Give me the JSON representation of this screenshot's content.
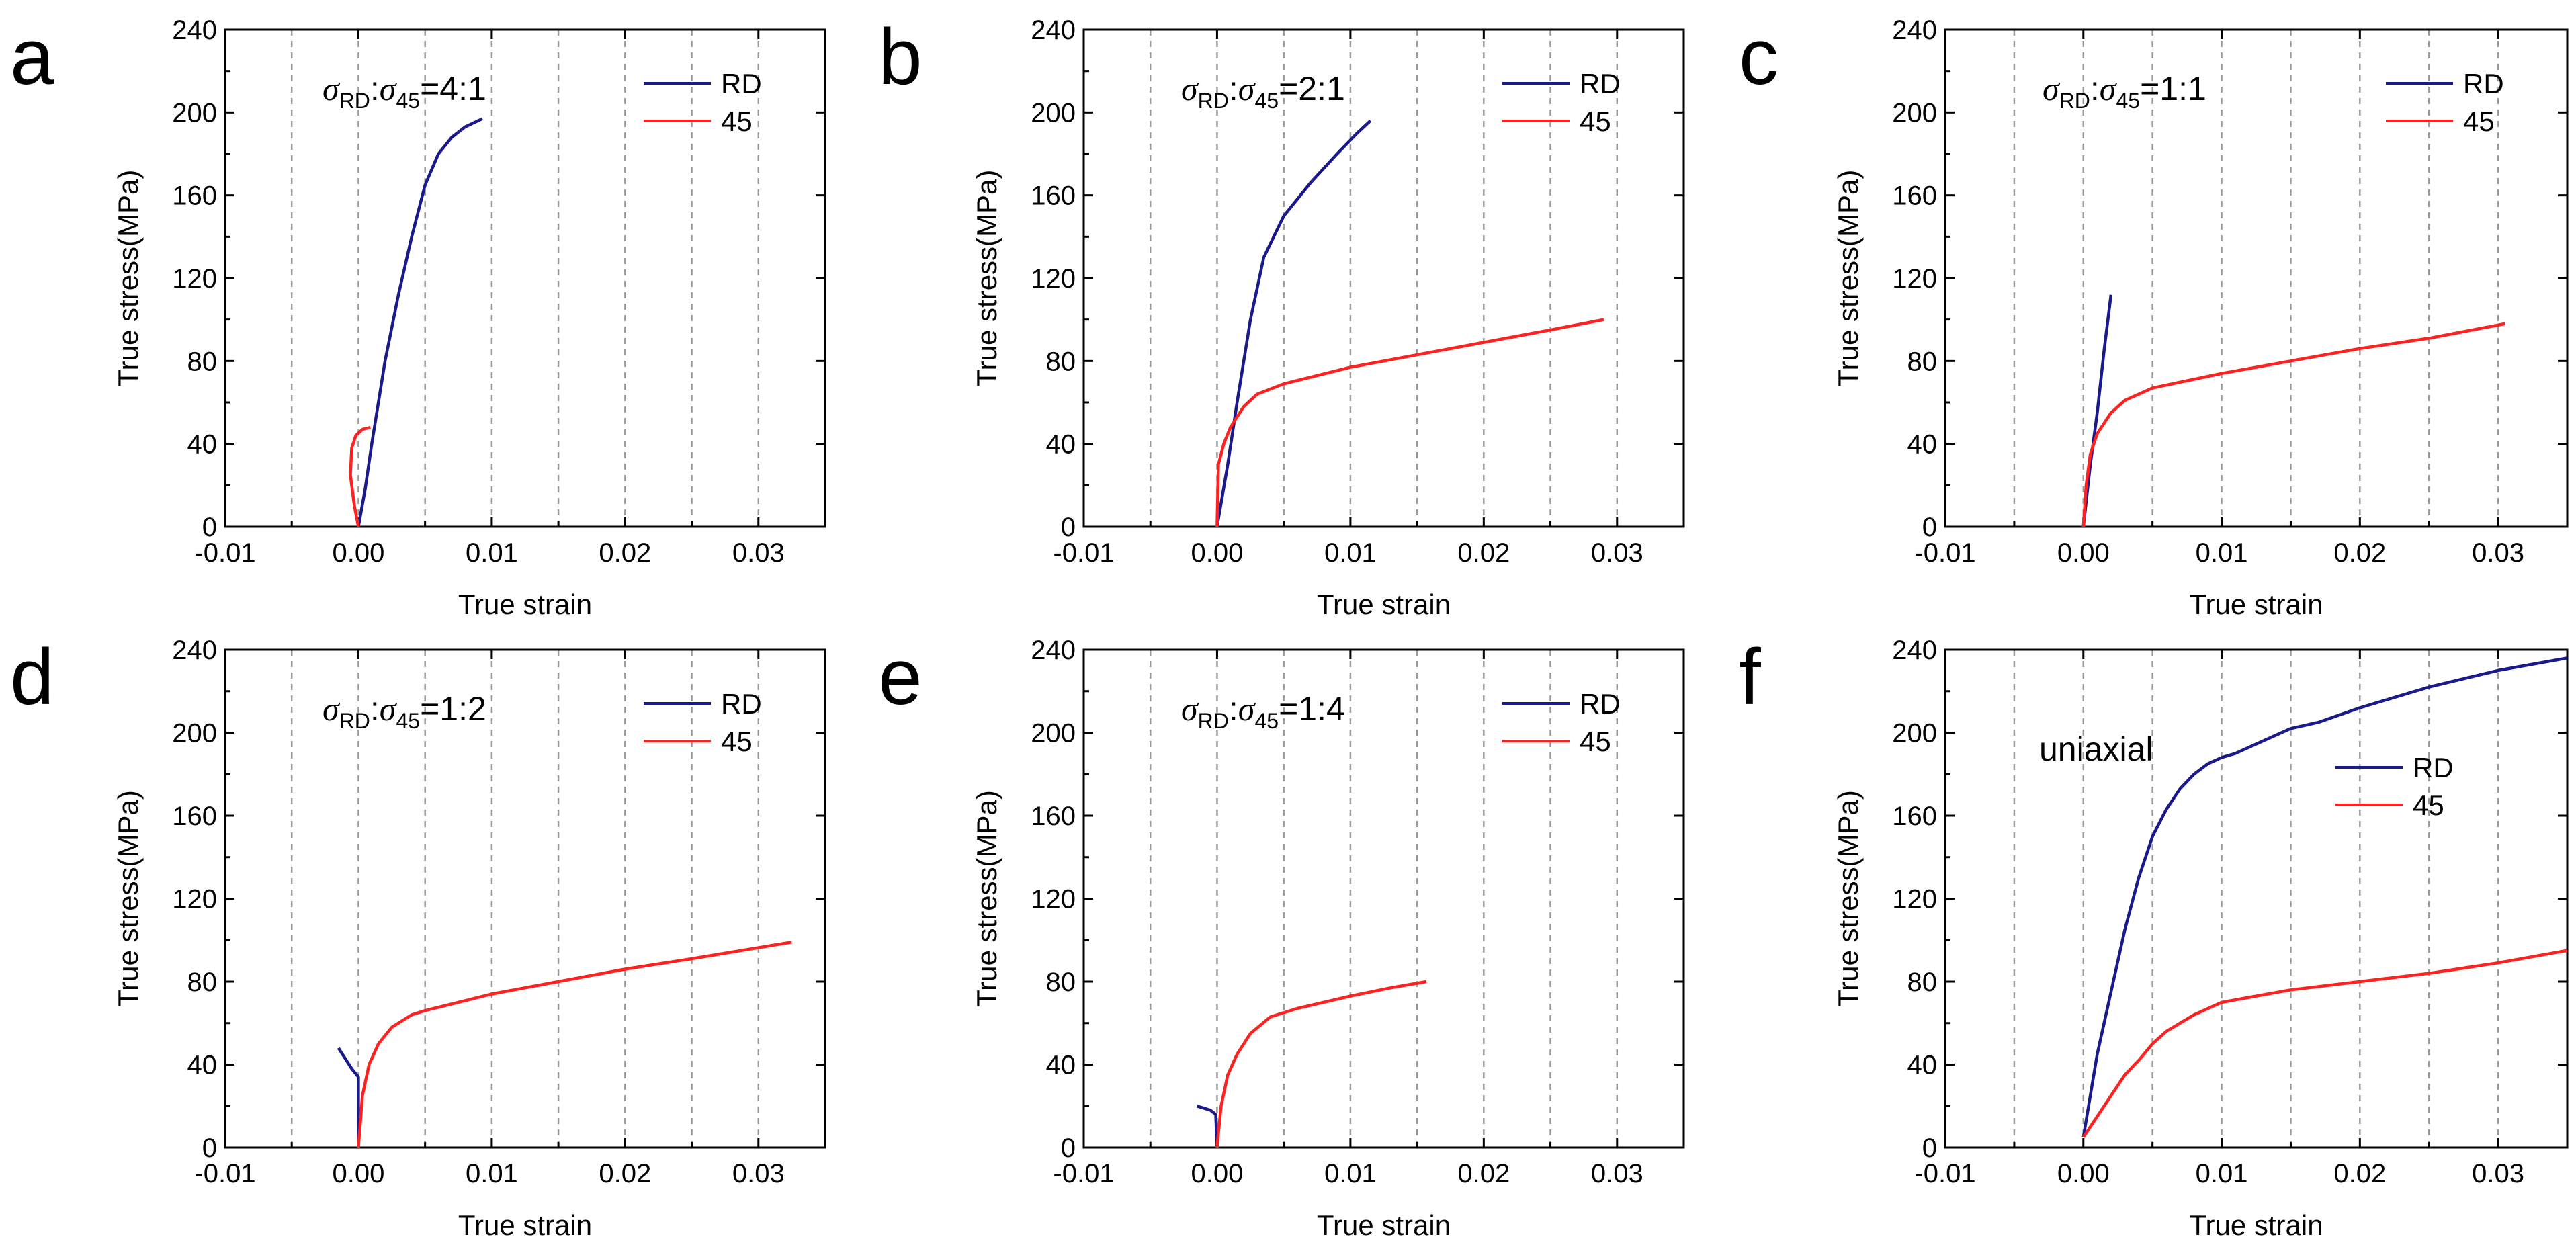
{
  "colors": {
    "RD": "#1a1a8c",
    "45": "#ff2020",
    "grid": "#9a9a9a",
    "axis": "#000000"
  },
  "chart_data": [
    {
      "type": "line",
      "panel_label": "a",
      "annotation": {
        "sym": "σ",
        "sub1": "RD",
        "mid": ":",
        "sub2": "45",
        "ratio": "=4:1"
      },
      "xlabel": "True strain",
      "ylabel": "True stress(MPa)",
      "xlim": [
        -0.01,
        0.035
      ],
      "ylim": [
        0,
        240
      ],
      "xticks": [
        "-0.01",
        "0.00",
        "0.01",
        "0.02",
        "0.03"
      ],
      "yticks": [
        "0",
        "40",
        "80",
        "120",
        "160",
        "200",
        "240"
      ],
      "grid": "vertical dashed",
      "legend_position": "top-right",
      "series": [
        {
          "name": "RD",
          "points": [
            [
              0,
              0
            ],
            [
              0.0005,
              18
            ],
            [
              0.001,
              40
            ],
            [
              0.002,
              80
            ],
            [
              0.003,
              112
            ],
            [
              0.004,
              140
            ],
            [
              0.005,
              165
            ],
            [
              0.006,
              180
            ],
            [
              0.007,
              188
            ],
            [
              0.008,
              193
            ],
            [
              0.0093,
              197
            ]
          ]
        },
        {
          "name": "45",
          "points": [
            [
              0,
              0
            ],
            [
              -0.0003,
              10
            ],
            [
              -0.0006,
              25
            ],
            [
              -0.0005,
              38
            ],
            [
              -0.0002,
              44
            ],
            [
              0.0003,
              47
            ],
            [
              0.0009,
              48
            ]
          ]
        }
      ]
    },
    {
      "type": "line",
      "panel_label": "b",
      "annotation": {
        "sym": "σ",
        "sub1": "RD",
        "mid": ":",
        "sub2": "45",
        "ratio": "=2:1"
      },
      "xlabel": "True strain",
      "ylabel": "True stress(MPa)",
      "xlim": [
        -0.01,
        0.035
      ],
      "ylim": [
        0,
        240
      ],
      "xticks": [
        "-0.01",
        "0.00",
        "0.01",
        "0.02",
        "0.03"
      ],
      "yticks": [
        "0",
        "40",
        "80",
        "120",
        "160",
        "200",
        "240"
      ],
      "grid": "vertical dashed",
      "legend_position": "top-right",
      "series": [
        {
          "name": "RD",
          "points": [
            [
              0,
              0
            ],
            [
              0.0008,
              30
            ],
            [
              0.0015,
              60
            ],
            [
              0.0025,
              100
            ],
            [
              0.0035,
              130
            ],
            [
              0.005,
              150
            ],
            [
              0.007,
              166
            ],
            [
              0.009,
              180
            ],
            [
              0.0105,
              190
            ],
            [
              0.0115,
              196
            ]
          ]
        },
        {
          "name": "45",
          "points": [
            [
              0,
              0
            ],
            [
              0.0001,
              30
            ],
            [
              0.0005,
              40
            ],
            [
              0.001,
              48
            ],
            [
              0.002,
              58
            ],
            [
              0.003,
              64
            ],
            [
              0.005,
              69
            ],
            [
              0.01,
              77
            ],
            [
              0.015,
              83
            ],
            [
              0.02,
              89
            ],
            [
              0.025,
              95
            ],
            [
              0.029,
              100
            ]
          ]
        }
      ]
    },
    {
      "type": "line",
      "panel_label": "c",
      "annotation": {
        "sym": "σ",
        "sub1": "RD",
        "mid": ":",
        "sub2": "45",
        "ratio": "=1:1"
      },
      "xlabel": "True strain",
      "ylabel": "True stress(MPa)",
      "xlim": [
        -0.01,
        0.035
      ],
      "ylim": [
        0,
        240
      ],
      "xticks": [
        "-0.01",
        "0.00",
        "0.01",
        "0.02",
        "0.03"
      ],
      "yticks": [
        "0",
        "40",
        "80",
        "120",
        "160",
        "200",
        "240"
      ],
      "grid": "vertical dashed",
      "legend_position": "top-right",
      "series": [
        {
          "name": "RD",
          "points": [
            [
              0,
              0
            ],
            [
              0.0005,
              30
            ],
            [
              0.001,
              55
            ],
            [
              0.0015,
              85
            ],
            [
              0.002,
              112
            ]
          ]
        },
        {
          "name": "45",
          "points": [
            [
              0,
              0
            ],
            [
              0.0002,
              20
            ],
            [
              0.0005,
              35
            ],
            [
              0.001,
              45
            ],
            [
              0.002,
              55
            ],
            [
              0.003,
              61
            ],
            [
              0.005,
              67
            ],
            [
              0.01,
              74
            ],
            [
              0.015,
              80
            ],
            [
              0.02,
              86
            ],
            [
              0.025,
              91
            ],
            [
              0.0305,
              98
            ]
          ]
        }
      ]
    },
    {
      "type": "line",
      "panel_label": "d",
      "annotation": {
        "sym": "σ",
        "sub1": "RD",
        "mid": ":",
        "sub2": "45",
        "ratio": "=1:2"
      },
      "xlabel": "True strain",
      "ylabel": "True stress(MPa)",
      "xlim": [
        -0.01,
        0.035
      ],
      "ylim": [
        0,
        240
      ],
      "xticks": [
        "-0.01",
        "0.00",
        "0.01",
        "0.02",
        "0.03"
      ],
      "yticks": [
        "0",
        "40",
        "80",
        "120",
        "160",
        "200",
        "240"
      ],
      "grid": "vertical dashed",
      "legend_position": "top-right",
      "series": [
        {
          "name": "RD",
          "points": [
            [
              -0.0015,
              48
            ],
            [
              -0.001,
              43
            ],
            [
              -0.0005,
              38
            ],
            [
              0,
              34
            ],
            [
              0,
              0
            ]
          ]
        },
        {
          "name": "45",
          "points": [
            [
              0,
              0
            ],
            [
              0.0003,
              25
            ],
            [
              0.0008,
              40
            ],
            [
              0.0015,
              50
            ],
            [
              0.0025,
              58
            ],
            [
              0.004,
              64
            ],
            [
              0.005,
              66
            ],
            [
              0.01,
              74
            ],
            [
              0.015,
              80
            ],
            [
              0.02,
              86
            ],
            [
              0.025,
              91
            ],
            [
              0.0325,
              99
            ]
          ]
        }
      ]
    },
    {
      "type": "line",
      "panel_label": "e",
      "annotation": {
        "sym": "σ",
        "sub1": "RD",
        "mid": ":",
        "sub2": "45",
        "ratio": "=1:4"
      },
      "xlabel": "True strain",
      "ylabel": "True stress(MPa)",
      "xlim": [
        -0.01,
        0.035
      ],
      "ylim": [
        0,
        240
      ],
      "xticks": [
        "-0.01",
        "0.00",
        "0.01",
        "0.02",
        "0.03"
      ],
      "yticks": [
        "0",
        "40",
        "80",
        "120",
        "160",
        "200",
        "240"
      ],
      "grid": "vertical dashed",
      "legend_position": "top-right",
      "series": [
        {
          "name": "RD",
          "points": [
            [
              -0.0015,
              20
            ],
            [
              -0.001,
              19
            ],
            [
              -0.0005,
              18
            ],
            [
              -0.0001,
              16
            ],
            [
              0,
              0
            ]
          ]
        },
        {
          "name": "45",
          "points": [
            [
              0,
              0
            ],
            [
              0.0003,
              20
            ],
            [
              0.0008,
              35
            ],
            [
              0.0015,
              45
            ],
            [
              0.0025,
              55
            ],
            [
              0.004,
              63
            ],
            [
              0.006,
              67
            ],
            [
              0.01,
              73
            ],
            [
              0.013,
              77
            ],
            [
              0.0157,
              80
            ]
          ]
        }
      ]
    },
    {
      "type": "line",
      "panel_label": "f",
      "annotation_text": "uniaxial",
      "xlabel": "True strain",
      "ylabel": "True stress(MPa)",
      "xlim": [
        -0.01,
        0.035
      ],
      "ylim": [
        0,
        240
      ],
      "xticks": [
        "-0.01",
        "0.00",
        "0.01",
        "0.02",
        "0.03"
      ],
      "yticks": [
        "0",
        "40",
        "80",
        "120",
        "160",
        "200",
        "240"
      ],
      "grid": "vertical dashed",
      "legend_position": "right",
      "series": [
        {
          "name": "RD",
          "points": [
            [
              0,
              5
            ],
            [
              0.0005,
              25
            ],
            [
              0.001,
              45
            ],
            [
              0.002,
              75
            ],
            [
              0.003,
              105
            ],
            [
              0.004,
              130
            ],
            [
              0.005,
              150
            ],
            [
              0.006,
              163
            ],
            [
              0.007,
              173
            ],
            [
              0.008,
              180
            ],
            [
              0.009,
              185
            ],
            [
              0.01,
              188
            ],
            [
              0.011,
              190
            ],
            [
              0.012,
              193
            ],
            [
              0.015,
              202
            ],
            [
              0.017,
              205
            ],
            [
              0.02,
              212
            ],
            [
              0.025,
              222
            ],
            [
              0.03,
              230
            ],
            [
              0.035,
              236
            ]
          ]
        },
        {
          "name": "45",
          "points": [
            [
              0,
              5
            ],
            [
              0.001,
              15
            ],
            [
              0.002,
              25
            ],
            [
              0.003,
              35
            ],
            [
              0.004,
              42
            ],
            [
              0.005,
              50
            ],
            [
              0.006,
              56
            ],
            [
              0.008,
              64
            ],
            [
              0.01,
              70
            ],
            [
              0.015,
              76
            ],
            [
              0.02,
              80
            ],
            [
              0.025,
              84
            ],
            [
              0.03,
              89
            ],
            [
              0.035,
              95
            ]
          ]
        }
      ]
    }
  ]
}
